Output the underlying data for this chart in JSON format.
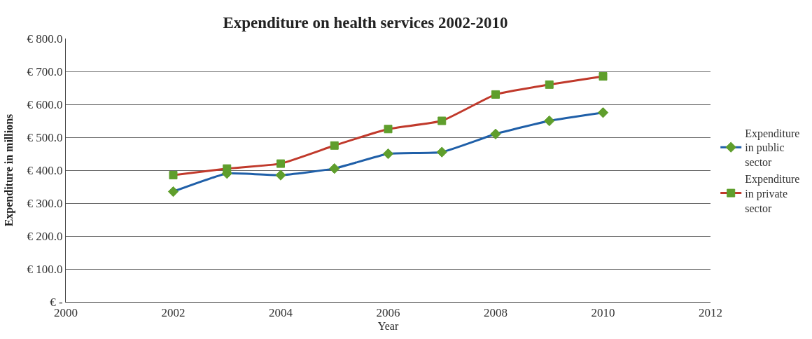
{
  "chart_data": {
    "type": "line",
    "title": "Expenditure on health services 2002-2010",
    "xlabel": "Year",
    "ylabel": "Expenditure in millions",
    "x": [
      2002,
      2003,
      2004,
      2005,
      2006,
      2007,
      2008,
      2009,
      2010
    ],
    "series": [
      {
        "name": "Expenditure in public sector",
        "color": "#1f5fa8",
        "marker": "diamond",
        "values": [
          335,
          390,
          385,
          405,
          450,
          455,
          510,
          550,
          575
        ]
      },
      {
        "name": "Expenditure in private sector",
        "color": "#c0392b",
        "marker": "square",
        "values": [
          385,
          405,
          420,
          475,
          525,
          550,
          630,
          660,
          685
        ]
      }
    ],
    "xlim": [
      2000,
      2012
    ],
    "xticks": [
      2000,
      2002,
      2004,
      2006,
      2008,
      2010,
      2012
    ],
    "ylim": [
      0,
      800
    ],
    "yticks": [
      {
        "value": 0,
        "label": "€ -"
      },
      {
        "value": 100,
        "label": "€ 100.0"
      },
      {
        "value": 200,
        "label": "€ 200.0"
      },
      {
        "value": 300,
        "label": "€ 300.0"
      },
      {
        "value": 400,
        "label": "€ 400.0"
      },
      {
        "value": 500,
        "label": "€ 500.0"
      },
      {
        "value": 600,
        "label": "€ 600.0"
      },
      {
        "value": 700,
        "label": "€ 700.0"
      },
      {
        "value": 800,
        "label": "€ 800.0"
      }
    ],
    "grid": "y",
    "legend": "right",
    "line_style": "solid"
  }
}
